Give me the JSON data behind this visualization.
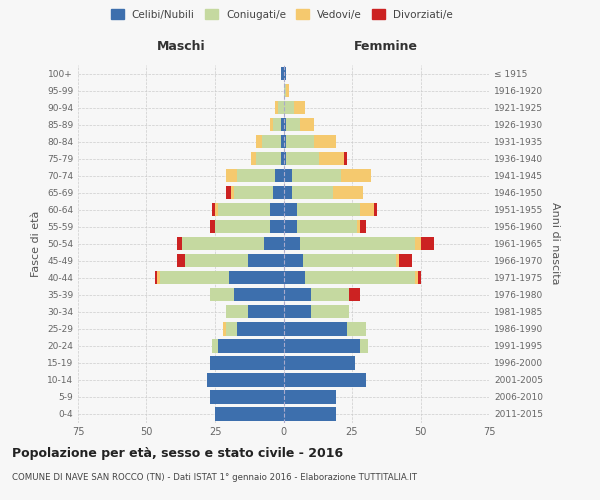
{
  "age_groups": [
    "0-4",
    "5-9",
    "10-14",
    "15-19",
    "20-24",
    "25-29",
    "30-34",
    "35-39",
    "40-44",
    "45-49",
    "50-54",
    "55-59",
    "60-64",
    "65-69",
    "70-74",
    "75-79",
    "80-84",
    "85-89",
    "90-94",
    "95-99",
    "100+"
  ],
  "birth_years": [
    "2011-2015",
    "2006-2010",
    "2001-2005",
    "1996-2000",
    "1991-1995",
    "1986-1990",
    "1981-1985",
    "1976-1980",
    "1971-1975",
    "1966-1970",
    "1961-1965",
    "1956-1960",
    "1951-1955",
    "1946-1950",
    "1941-1945",
    "1936-1940",
    "1931-1935",
    "1926-1930",
    "1921-1925",
    "1916-1920",
    "≤ 1915"
  ],
  "males": {
    "celibi": [
      25,
      27,
      28,
      27,
      24,
      17,
      13,
      18,
      20,
      13,
      7,
      5,
      5,
      4,
      3,
      1,
      1,
      1,
      0,
      0,
      1
    ],
    "coniugati": [
      0,
      0,
      0,
      0,
      2,
      4,
      8,
      9,
      25,
      23,
      30,
      20,
      19,
      14,
      14,
      9,
      7,
      3,
      2,
      0,
      0
    ],
    "vedovi": [
      0,
      0,
      0,
      0,
      0,
      1,
      0,
      0,
      1,
      0,
      0,
      0,
      1,
      1,
      4,
      2,
      2,
      1,
      1,
      0,
      0
    ],
    "divorziati": [
      0,
      0,
      0,
      0,
      0,
      0,
      0,
      0,
      1,
      3,
      2,
      2,
      1,
      2,
      0,
      0,
      0,
      0,
      0,
      0,
      0
    ]
  },
  "females": {
    "nubili": [
      19,
      19,
      30,
      26,
      28,
      23,
      10,
      10,
      8,
      7,
      6,
      5,
      5,
      3,
      3,
      1,
      1,
      1,
      0,
      0,
      1
    ],
    "coniugate": [
      0,
      0,
      0,
      0,
      3,
      7,
      14,
      14,
      40,
      34,
      42,
      22,
      23,
      15,
      18,
      12,
      10,
      5,
      4,
      1,
      0
    ],
    "vedove": [
      0,
      0,
      0,
      0,
      0,
      0,
      0,
      0,
      1,
      1,
      2,
      1,
      5,
      11,
      11,
      9,
      8,
      5,
      4,
      1,
      0
    ],
    "divorziate": [
      0,
      0,
      0,
      0,
      0,
      0,
      0,
      4,
      1,
      5,
      5,
      2,
      1,
      0,
      0,
      1,
      0,
      0,
      0,
      0,
      0
    ]
  },
  "colors": {
    "celibi": "#3d6fad",
    "coniugati": "#c5d9a0",
    "vedovi": "#f5c96e",
    "divorziati": "#cc2222"
  },
  "xlim": 75,
  "title": "Popolazione per età, sesso e stato civile - 2016",
  "subtitle": "COMUNE DI NAVE SAN ROCCO (TN) - Dati ISTAT 1° gennaio 2016 - Elaborazione TUTTITALIA.IT",
  "ylabel_left": "Fasce di età",
  "ylabel_right": "Anni di nascita",
  "xlabel_left": "Maschi",
  "xlabel_right": "Femmine",
  "bg_color": "#f7f7f7",
  "grid_color": "#cccccc"
}
